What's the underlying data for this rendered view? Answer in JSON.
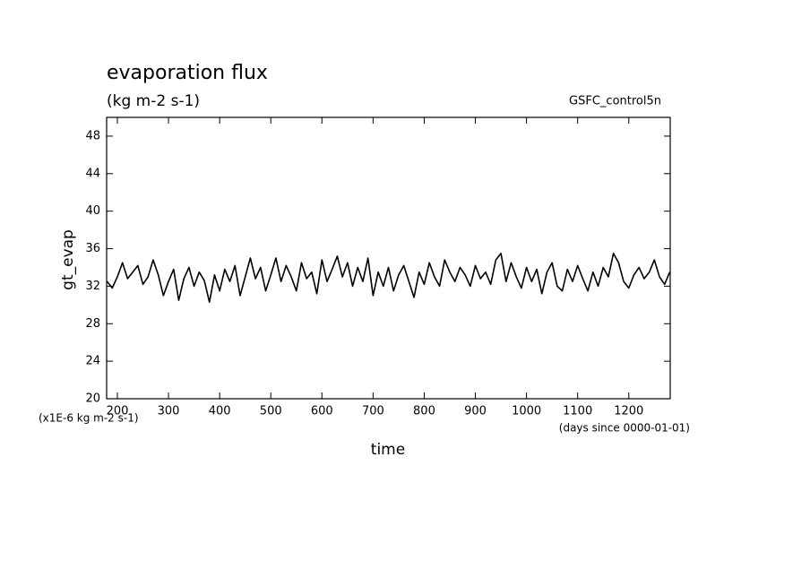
{
  "chart_data": {
    "type": "line",
    "title": "evaporation flux",
    "subtitle": "(kg m-2 s-1)",
    "annotation": "GSFC_control5n",
    "y_label": "gt_evap",
    "x_label": "time",
    "y_units": "(x1E-6 kg m-2 s-1)",
    "x_units": "(days since 0000-01-01)",
    "xlim": [
      179,
      1281
    ],
    "ylim": [
      20,
      50
    ],
    "xticks": [
      200,
      300,
      400,
      500,
      600,
      700,
      800,
      900,
      1000,
      1100,
      1200
    ],
    "yticks": [
      20,
      24,
      28,
      32,
      36,
      40,
      44,
      48
    ],
    "x": [
      180,
      190,
      200,
      210,
      220,
      230,
      240,
      250,
      260,
      270,
      280,
      290,
      300,
      310,
      320,
      330,
      340,
      350,
      360,
      370,
      380,
      390,
      400,
      410,
      420,
      430,
      440,
      450,
      460,
      470,
      480,
      490,
      500,
      510,
      520,
      530,
      540,
      550,
      560,
      570,
      580,
      590,
      600,
      610,
      620,
      630,
      640,
      650,
      660,
      670,
      680,
      690,
      700,
      710,
      720,
      730,
      740,
      750,
      760,
      770,
      780,
      790,
      800,
      810,
      820,
      830,
      840,
      850,
      860,
      870,
      880,
      890,
      900,
      910,
      920,
      930,
      940,
      950,
      960,
      970,
      980,
      990,
      1000,
      1010,
      1020,
      1030,
      1040,
      1050,
      1060,
      1070,
      1080,
      1090,
      1100,
      1110,
      1120,
      1130,
      1140,
      1150,
      1160,
      1170,
      1180,
      1190,
      1200,
      1210,
      1220,
      1230,
      1240,
      1250,
      1260,
      1270,
      1280
    ],
    "series": [
      {
        "name": "gt_evap",
        "color": "#000000",
        "values": [
          32.5,
          31.8,
          33.0,
          34.5,
          32.8,
          33.5,
          34.2,
          32.2,
          33.0,
          34.8,
          33.2,
          31.0,
          32.5,
          33.8,
          30.5,
          32.8,
          34.0,
          32.0,
          33.5,
          32.6,
          30.3,
          33.2,
          31.5,
          33.8,
          32.5,
          34.2,
          31.0,
          33.0,
          35.0,
          32.8,
          34.0,
          31.5,
          33.2,
          35.0,
          32.5,
          34.2,
          33.0,
          31.5,
          34.5,
          32.8,
          33.5,
          31.2,
          34.8,
          32.5,
          33.8,
          35.2,
          33.0,
          34.5,
          32.0,
          34.0,
          32.5,
          35.0,
          31.0,
          33.5,
          32.0,
          34.0,
          31.5,
          33.2,
          34.2,
          32.5,
          30.8,
          33.5,
          32.2,
          34.5,
          33.0,
          32.0,
          34.8,
          33.5,
          32.5,
          34.0,
          33.2,
          32.0,
          34.2,
          32.8,
          33.5,
          32.2,
          34.8,
          35.5,
          32.5,
          34.5,
          33.0,
          31.8,
          34.0,
          32.5,
          33.8,
          31.2,
          33.5,
          34.5,
          32.0,
          31.5,
          33.8,
          32.5,
          34.2,
          32.8,
          31.5,
          33.5,
          32.0,
          34.0,
          33.0,
          35.5,
          34.5,
          32.5,
          31.8,
          33.2,
          34.0,
          32.8,
          33.5,
          34.8,
          33.0,
          32.2,
          33.5
        ]
      }
    ]
  }
}
